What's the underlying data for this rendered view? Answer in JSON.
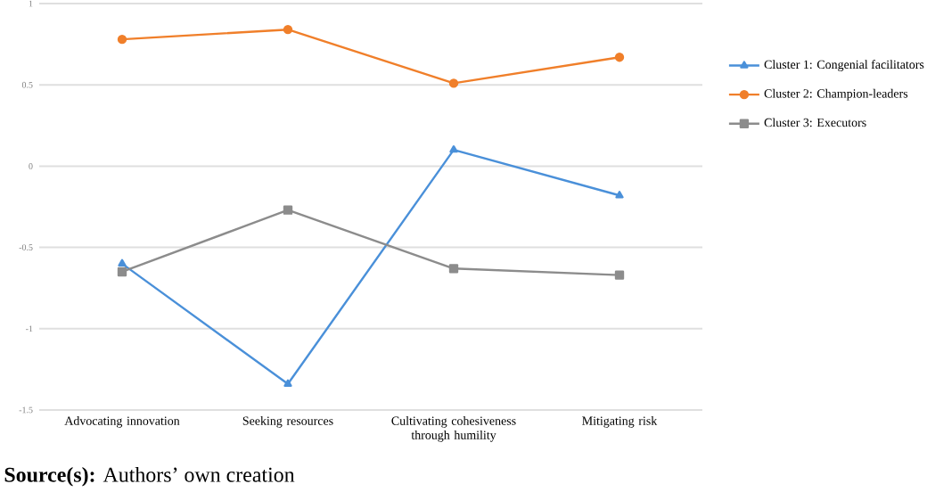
{
  "chart_data": {
    "type": "line",
    "categories": [
      "Advocating innovation",
      "Seeking resources",
      "Cultivating cohesiveness through humility",
      "Mitigating risk"
    ],
    "series": [
      {
        "name": "Cluster 1: Congenial facilitators",
        "color": "#4a90d9",
        "marker": "triangle",
        "values": [
          -0.6,
          -1.34,
          0.1,
          -0.18
        ]
      },
      {
        "name": "Cluster 2: Champion-leaders",
        "color": "#f07f2a",
        "marker": "circle",
        "values": [
          0.78,
          0.84,
          0.51,
          0.67
        ]
      },
      {
        "name": "Cluster 3: Executors",
        "color": "#8c8c8c",
        "marker": "square",
        "values": [
          -0.65,
          -0.27,
          -0.63,
          -0.67
        ]
      }
    ],
    "ylim": [
      -1.5,
      1
    ],
    "yticks": [
      -1.5,
      -1,
      -0.5,
      0,
      0.5,
      1
    ],
    "grid": "y",
    "legend": "right",
    "line_style": "solid",
    "annotations": [
      "**Source(s):** Authors’ own creation"
    ]
  }
}
